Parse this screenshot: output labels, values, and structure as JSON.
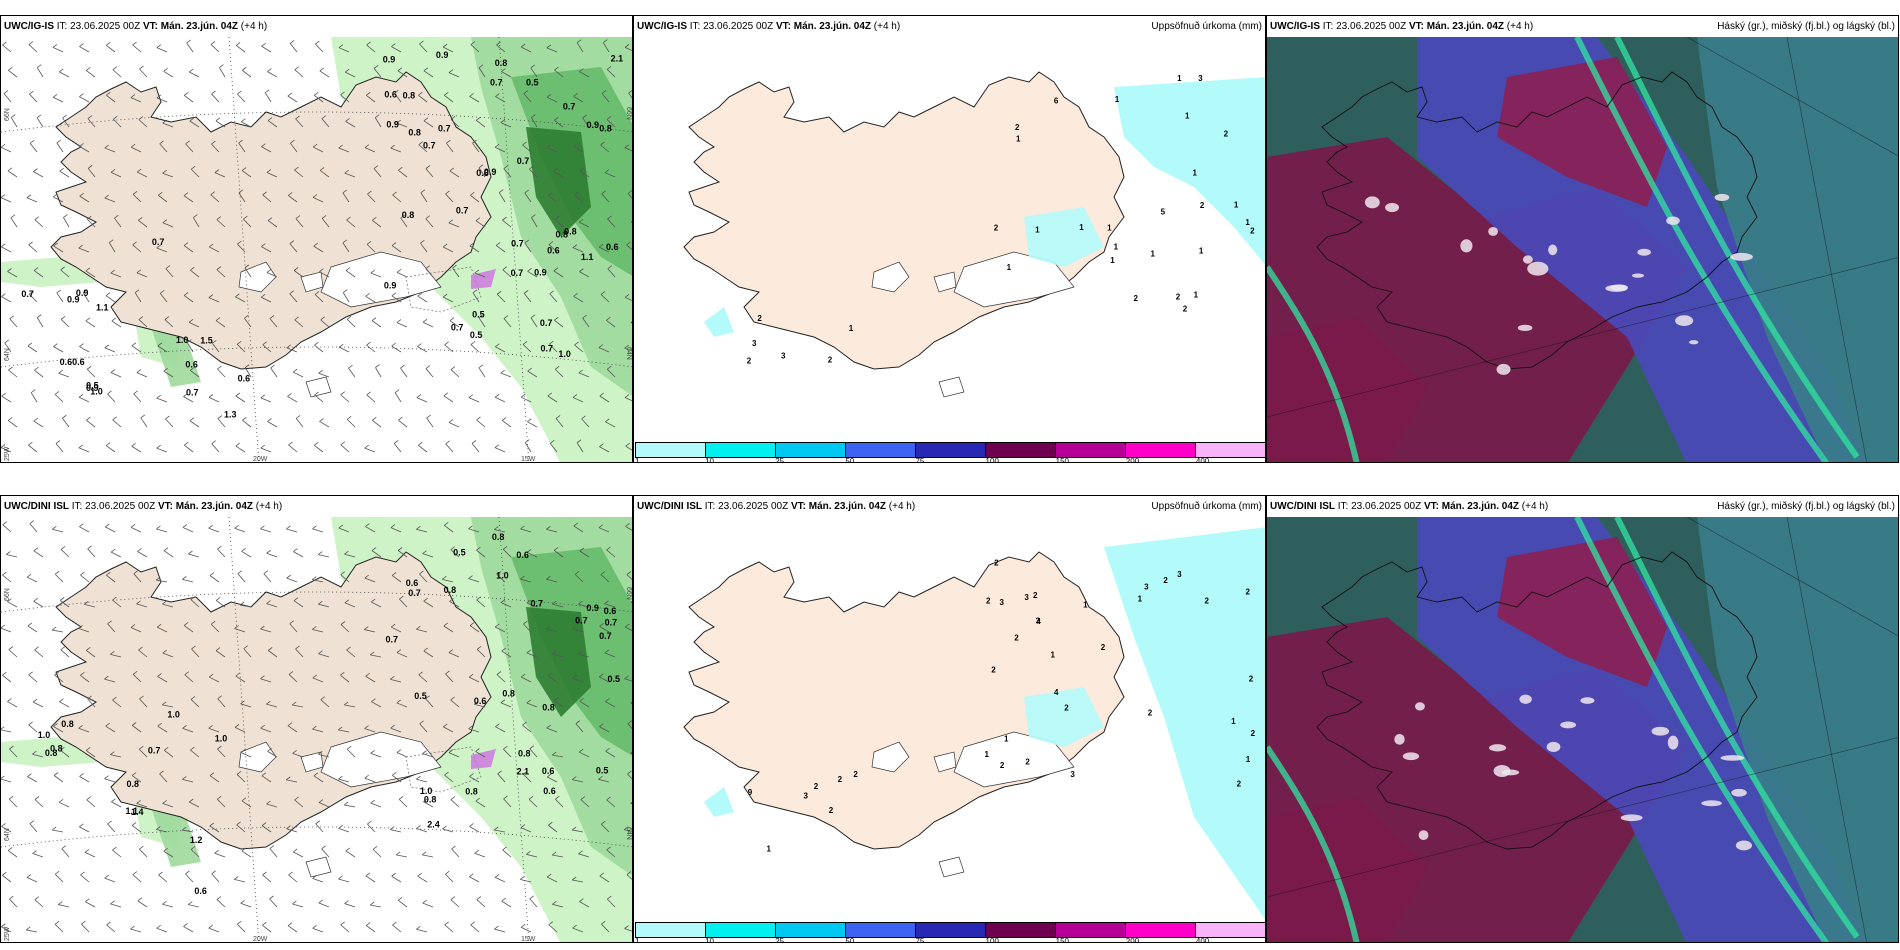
{
  "panels": {
    "p1": {
      "model": "UWC/IG-IS",
      "it_label": "IT:",
      "it": "23.06.2025 00Z",
      "vt_label": "VT:",
      "vt": "Mán. 23.jún. 04Z",
      "lead": "(+4 h)",
      "right": ""
    },
    "p2": {
      "model": "UWC/IG-IS",
      "it_label": "IT:",
      "it": "23.06.2025 00Z",
      "vt_label": "VT:",
      "vt": "Mán. 23.jún. 04Z",
      "lead": "(+4 h)",
      "right": "Uppsöfnuð úrkoma (mm)"
    },
    "p3": {
      "model": "UWC/IG-IS",
      "it_label": "IT:",
      "it": "23.06.2025 00Z",
      "vt_label": "VT:",
      "vt": "Mán. 23.jún. 04Z",
      "lead": "(+4 h)",
      "right": "Háský (gr.), miðský (fj.bl.) og lágský (bl.)"
    },
    "p4": {
      "model": "UWC/DINI ISL",
      "it_label": "IT:",
      "it": "23.06.2025 00Z",
      "vt_label": "VT:",
      "vt": "Mán. 23.jún. 04Z",
      "lead": "(+4 h)",
      "right": ""
    },
    "p5": {
      "model": "UWC/DINI ISL",
      "it_label": "IT:",
      "it": "23.06.2025 00Z",
      "vt_label": "VT:",
      "vt": "Mán. 23.jún. 04Z",
      "lead": "(+4 h)",
      "right": "Uppsöfnuð úrkoma (mm)"
    },
    "p6": {
      "model": "UWC/DINI ISL",
      "it_label": "IT:",
      "it": "23.06.2025 00Z",
      "vt_label": "VT:",
      "vt": "Mán. 23.jún. 04Z",
      "lead": "(+4 h)",
      "right": "Háský (gr.), miðský (fj.bl.) og lágský (bl.)"
    }
  },
  "grid_labels": {
    "lat66": "66N",
    "lat64": "64N",
    "lon25": "25W",
    "lon20": "20W",
    "lon15": "15W"
  },
  "colorbar": {
    "colors": [
      "#b3fbfb",
      "#00f0f0",
      "#00c8f0",
      "#3c64f0",
      "#2828b4",
      "#6e0050",
      "#b40096",
      "#ff00c8",
      "#f8b4f8"
    ],
    "ticks": [
      "1",
      "10",
      "25",
      "50",
      "75",
      "100",
      "150",
      "200",
      "400"
    ]
  },
  "wind_values_top": [
    "0.5",
    "0.7",
    "0.6",
    "0.7",
    "0.8",
    "0.7",
    "0.5",
    "0.9",
    "0.8",
    "0.9",
    "0.6",
    "0.7",
    "0.8",
    "0.6",
    "0.5",
    "0.8",
    "0.9",
    "1.1",
    "0.9",
    "0.7",
    "2.1",
    "0.9",
    "0.7",
    "0.8",
    "0.7",
    "0.8",
    "0.7",
    "0.7",
    "0.7",
    "0.9",
    "0.6",
    "0.7",
    "0.8",
    "1.0",
    "0.9",
    "0.60.6",
    "0.5",
    "1.1",
    "0.9",
    "1.3",
    "0.7",
    "1.0",
    "0.6",
    "0.9",
    "1.0",
    "1.5",
    "0.9",
    "0.7",
    "0.6",
    "0.7"
  ],
  "wind_values_bottom": [
    "0.5",
    "0.6",
    "0.8",
    "1.0",
    "0.9",
    "0.8",
    "1.0",
    "0.8",
    "0.6",
    "0.8",
    "0.7",
    "0.7",
    "0.5",
    "0.7",
    "0.6",
    "0.7",
    "0.5",
    "0.8",
    "0.8",
    "2.4",
    "2.1",
    "0.6",
    "0.6",
    "0.7",
    "0.5",
    "0.7",
    "0.8",
    "0.6",
    "1.1",
    "1.0",
    "0.8",
    "1.0",
    "0.8",
    "1.2",
    "1.4",
    "0.8",
    "0.6",
    "1.0",
    "0.8",
    "0.7"
  ],
  "precip_values_top": [
    "2",
    "1",
    "1",
    "1",
    "1",
    "3",
    "1",
    "2",
    "2",
    "1",
    "1",
    "1",
    "1",
    "1",
    "1",
    "1",
    "2",
    "2",
    "1",
    "2",
    "1",
    "5",
    "1",
    "2",
    "2",
    "1",
    "6",
    "2",
    "2",
    "3",
    "1",
    "2",
    "3"
  ],
  "precip_values_bottom": [
    "3",
    "4",
    "3",
    "4",
    "2",
    "2",
    "2",
    "2",
    "2",
    "1",
    "1",
    "2",
    "2",
    "2",
    "3",
    "2",
    "2",
    "1",
    "3",
    "3",
    "3",
    "2",
    "2",
    "1",
    "2",
    "2",
    "1",
    "2",
    "1",
    "1",
    "2",
    "2",
    "9",
    "2",
    "2",
    "3",
    "1",
    "2"
  ]
}
